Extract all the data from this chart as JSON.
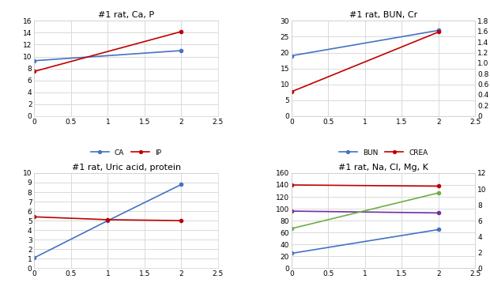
{
  "top_left": {
    "title": "#1 rat, Ca, P",
    "x": [
      0,
      2
    ],
    "CA": [
      9.3,
      11.0
    ],
    "IP": [
      7.5,
      14.2
    ],
    "ylim": [
      0,
      16
    ],
    "yticks": [
      0,
      2,
      4,
      6,
      8,
      10,
      12,
      14,
      16
    ],
    "xlim": [
      0,
      2.5
    ],
    "xticks": [
      0,
      0.5,
      1,
      1.5,
      2,
      2.5
    ],
    "ca_color": "#4472c4",
    "ip_color": "#c00000"
  },
  "top_right": {
    "title": "#1 rat, BUN, Cr",
    "x": [
      0,
      2
    ],
    "BUN": [
      19.0,
      27.0
    ],
    "CREA": [
      0.46,
      1.59
    ],
    "ylim_left": [
      0,
      30
    ],
    "ylim_right": [
      0,
      1.8
    ],
    "yticks_left": [
      0,
      5,
      10,
      15,
      20,
      25,
      30
    ],
    "yticks_right": [
      0,
      0.2,
      0.4,
      0.6,
      0.8,
      1.0,
      1.2,
      1.4,
      1.6,
      1.8
    ],
    "xlim": [
      0,
      2.5
    ],
    "xticks": [
      0,
      0.5,
      1,
      1.5,
      2,
      2.5
    ],
    "bun_color": "#4472c4",
    "crea_color": "#c00000"
  },
  "bottom_left": {
    "title": "#1 rat, Uric acid, protein",
    "x": [
      0,
      1,
      2
    ],
    "UA": [
      1.1,
      5.0,
      8.8
    ],
    "TP": [
      5.4,
      5.1,
      5.0
    ],
    "ylim": [
      0,
      10
    ],
    "yticks": [
      0,
      1,
      2,
      3,
      4,
      5,
      6,
      7,
      8,
      9,
      10
    ],
    "xlim": [
      0,
      2.5
    ],
    "xticks": [
      0,
      0.5,
      1,
      1.5,
      2,
      2.5
    ],
    "ua_color": "#4472c4",
    "tp_color": "#c00000"
  },
  "bottom_right": {
    "title": "#1 rat, Na, Cl, Mg, K",
    "x": [
      0,
      2
    ],
    "Na": [
      140,
      138
    ],
    "Cl": [
      96,
      93
    ],
    "MG": [
      25,
      65
    ],
    "K": [
      5.0,
      9.5
    ],
    "ylim_left": [
      0,
      160
    ],
    "ylim_right": [
      0,
      12
    ],
    "yticks_left": [
      0,
      20,
      40,
      60,
      80,
      100,
      120,
      140,
      160
    ],
    "yticks_right": [
      0,
      2,
      4,
      6,
      8,
      10,
      12
    ],
    "xlim": [
      0,
      2.5
    ],
    "xticks": [
      0,
      0.5,
      1,
      1.5,
      2,
      2.5
    ],
    "na_color": "#c00000",
    "cl_color": "#7030a0",
    "mg_color": "#4472c4",
    "k_color": "#70ad47"
  },
  "bg_color": "#ffffff",
  "grid_color": "#d9d9d9"
}
